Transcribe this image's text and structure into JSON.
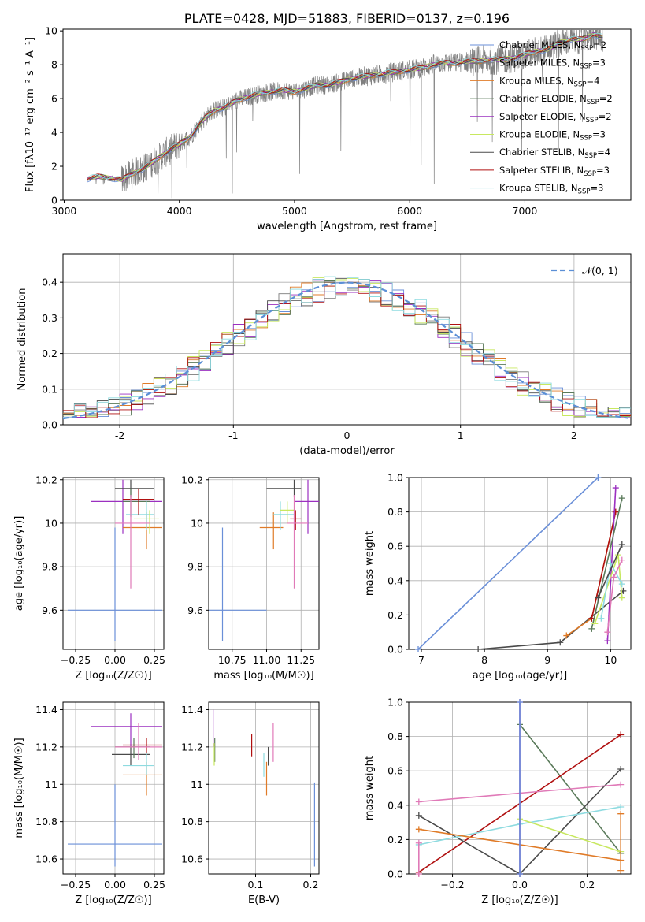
{
  "colors": {
    "cm": "#6a8fd8",
    "sm": "#7b7b7b",
    "km": "#e07b28",
    "ce": "#5a7a5a",
    "se": "#9b30c0",
    "ke": "#c8e860",
    "cs": "#4a4a4a",
    "ss": "#b01010",
    "ks": "#8edbe0",
    "pink": "#e07ab8",
    "normal": "#5b8fd6"
  },
  "chart_data": [
    {
      "type": "line",
      "title": "PLATE=0428, MJD=51883, FIBERID=0137, z=0.196",
      "xlabel": "wavelength [Angstrom, rest frame]",
      "ylabel": "Flux [fλ10⁻¹⁷ erg cm⁻² s⁻¹ A⁻¹]",
      "xlim": [
        2990,
        7920
      ],
      "ylim": [
        0,
        10.1
      ],
      "xticks": [
        3000,
        4000,
        5000,
        6000,
        7000
      ],
      "yticks": [
        0,
        2,
        4,
        6,
        8,
        10
      ],
      "grid": false,
      "legend_position": "right",
      "legend": [
        {
          "key": "cm",
          "label": "Chabrier MILES, N",
          "sub": "SSP",
          "eq": "=2"
        },
        {
          "key": "sm",
          "label": "Salpeter MILES, N",
          "sub": "SSP",
          "eq": "=3"
        },
        {
          "key": "km",
          "label": "Kroupa MILES, N",
          "sub": "SSP",
          "eq": "=4"
        },
        {
          "key": "ce",
          "label": "Chabrier ELODIE, N",
          "sub": "SSP",
          "eq": "=2"
        },
        {
          "key": "se",
          "label": "Salpeter ELODIE, N",
          "sub": "SSP",
          "eq": "=2"
        },
        {
          "key": "ke",
          "label": "Kroupa ELODIE, N",
          "sub": "SSP",
          "eq": "=3"
        },
        {
          "key": "cs",
          "label": "Chabrier STELIB, N",
          "sub": "SSP",
          "eq": "=4"
        },
        {
          "key": "ss",
          "label": "Salpeter STELIB, N",
          "sub": "SSP",
          "eq": "=3"
        },
        {
          "key": "ks",
          "label": "Kroupa STELIB, N",
          "sub": "SSP",
          "eq": "=3"
        }
      ],
      "continuum": [
        [
          3200,
          1.25
        ],
        [
          3300,
          1.4
        ],
        [
          3400,
          1.3
        ],
        [
          3500,
          1.2
        ],
        [
          3600,
          1.6
        ],
        [
          3700,
          1.9
        ],
        [
          3800,
          2.4
        ],
        [
          3900,
          2.9
        ],
        [
          4000,
          3.3
        ],
        [
          4100,
          3.8
        ],
        [
          4200,
          4.7
        ],
        [
          4300,
          5.3
        ],
        [
          4400,
          5.5
        ],
        [
          4500,
          5.9
        ],
        [
          4600,
          6.1
        ],
        [
          4700,
          6.3
        ],
        [
          4800,
          6.4
        ],
        [
          4900,
          6.5
        ],
        [
          5000,
          6.4
        ],
        [
          5100,
          6.6
        ],
        [
          5200,
          6.8
        ],
        [
          5300,
          6.8
        ],
        [
          5400,
          7.0
        ],
        [
          5500,
          7.2
        ],
        [
          5600,
          7.3
        ],
        [
          5700,
          7.4
        ],
        [
          5800,
          7.5
        ],
        [
          5900,
          7.6
        ],
        [
          6000,
          7.7
        ],
        [
          6100,
          7.8
        ],
        [
          6200,
          8.0
        ],
        [
          6300,
          8.1
        ],
        [
          6400,
          8.1
        ],
        [
          6500,
          8.2
        ],
        [
          6600,
          8.2
        ],
        [
          6700,
          8.3
        ],
        [
          6800,
          8.3
        ],
        [
          6900,
          8.4
        ],
        [
          7000,
          8.6
        ],
        [
          7100,
          8.8
        ],
        [
          7200,
          8.9
        ],
        [
          7300,
          9.3
        ],
        [
          7400,
          9.5
        ],
        [
          7500,
          9.5
        ],
        [
          7600,
          9.8
        ],
        [
          7680,
          9.6
        ]
      ]
    },
    {
      "type": "line",
      "xlabel": "(data-model)/error",
      "ylabel": "Normed distribution",
      "xlim": [
        -2.5,
        2.5
      ],
      "ylim": [
        0,
        0.48
      ],
      "xticks": [
        -2,
        -1,
        0,
        1,
        2
      ],
      "yticks": [
        0.0,
        0.1,
        0.2,
        0.3,
        0.4
      ],
      "grid": true,
      "legend_position": "top-right",
      "normal_label": "𝒩(0, 1)"
    },
    {
      "type": "scatter",
      "xlabel": "Z [log₁₀(Z/Z☉)]",
      "ylabel": "age  [log₁₀(age/yr)]",
      "xlim": [
        -0.33,
        0.31
      ],
      "ylim": [
        9.42,
        10.21
      ],
      "xticks": [
        -0.25,
        0.0,
        0.25
      ],
      "xtick_labels": [
        "−0.25",
        "0.00",
        "0.25"
      ],
      "yticks": [
        9.6,
        9.8,
        10.0,
        10.2
      ],
      "grid": true,
      "points": [
        {
          "c": "cm",
          "x": 0.0,
          "y": 9.6,
          "xe": [
            -0.3,
            0.3
          ],
          "ye": [
            9.46,
            9.98
          ]
        },
        {
          "c": "se",
          "x": 0.05,
          "y": 10.1,
          "xe": [
            -0.15,
            0.3
          ],
          "ye": [
            9.95,
            10.2
          ]
        },
        {
          "c": "cs",
          "x": 0.1,
          "y": 10.16,
          "xe": [
            0.0,
            0.25
          ],
          "ye": [
            10.12,
            10.2
          ]
        },
        {
          "c": "ce",
          "x": 0.1,
          "y": 10.1,
          "xe": [
            0.05,
            0.22
          ],
          "ye": [
            10.03,
            10.16
          ]
        },
        {
          "c": "km",
          "x": 0.2,
          "y": 9.98,
          "xe": [
            0.05,
            0.3
          ],
          "ye": [
            9.88,
            10.05
          ]
        },
        {
          "c": "ks",
          "x": 0.2,
          "y": 10.04,
          "xe": [
            0.07,
            0.25
          ],
          "ye": [
            9.97,
            10.1
          ]
        },
        {
          "c": "ke",
          "x": 0.22,
          "y": 10.02,
          "xe": [
            0.12,
            0.28
          ],
          "ye": [
            9.95,
            10.06
          ]
        },
        {
          "c": "ss",
          "x": 0.15,
          "y": 10.11,
          "xe": [
            0.05,
            0.25
          ],
          "ye": [
            10.04,
            10.16
          ]
        },
        {
          "c": "pink",
          "x": 0.1,
          "y": 10.0,
          "xe": [
            0.0,
            0.22
          ],
          "ye": [
            9.7,
            10.13
          ]
        }
      ]
    },
    {
      "type": "scatter",
      "xlabel": "mass [log₁₀(M/M☉)]",
      "xlim": [
        10.58,
        11.38
      ],
      "ylim": [
        9.42,
        10.21
      ],
      "xticks": [
        10.75,
        11.0,
        11.25
      ],
      "xtick_labels": [
        "10.75",
        "11.00",
        "11.25"
      ],
      "yticks": [
        9.6,
        9.8,
        10.0,
        10.2
      ],
      "grid": true,
      "points": [
        {
          "c": "cm",
          "x": 10.68,
          "y": 9.6,
          "xe": [
            10.58,
            11.0
          ],
          "ye": [
            9.46,
            9.98
          ]
        },
        {
          "c": "se",
          "x": 11.3,
          "y": 10.1,
          "xe": [
            11.2,
            11.38
          ],
          "ye": [
            9.95,
            10.2
          ]
        },
        {
          "c": "cs",
          "x": 11.2,
          "y": 10.16,
          "xe": [
            11.0,
            11.25
          ],
          "ye": [
            10.12,
            10.2
          ]
        },
        {
          "c": "km",
          "x": 11.05,
          "y": 9.98,
          "xe": [
            10.95,
            11.12
          ],
          "ye": [
            9.88,
            10.05
          ]
        },
        {
          "c": "ks",
          "x": 11.1,
          "y": 10.04,
          "xe": [
            11.05,
            11.2
          ],
          "ye": [
            9.97,
            10.1
          ]
        },
        {
          "c": "ke",
          "x": 11.15,
          "y": 10.06,
          "xe": [
            11.1,
            11.2
          ],
          "ye": [
            10.0,
            10.1
          ]
        },
        {
          "c": "ss",
          "x": 11.21,
          "y": 10.02,
          "xe": [
            11.17,
            11.25
          ],
          "ye": [
            9.97,
            10.06
          ]
        },
        {
          "c": "pink",
          "x": 11.2,
          "y": 10.0,
          "xe": [
            11.15,
            11.3
          ],
          "ye": [
            9.7,
            10.13
          ]
        }
      ]
    },
    {
      "type": "line",
      "xlabel": "age  [log₁₀(age/yr)]",
      "ylabel": "mass weight",
      "xlim": [
        6.8,
        10.32
      ],
      "ylim": [
        0,
        1.0
      ],
      "xticks": [
        7,
        8,
        9,
        10
      ],
      "yticks": [
        0.0,
        0.2,
        0.4,
        0.6,
        0.8,
        1.0
      ],
      "grid": true,
      "series": [
        {
          "c": "cm",
          "x": [
            6.95,
            9.8
          ],
          "y": [
            0.0,
            1.0
          ]
        },
        {
          "c": "cs",
          "x": [
            7.9,
            9.2,
            10.2
          ],
          "y": [
            0.0,
            0.04,
            0.34
          ]
        },
        {
          "c": "km",
          "x": [
            9.3,
            9.7,
            10.08
          ],
          "y": [
            0.08,
            0.18,
            0.8
          ]
        },
        {
          "c": "ss",
          "x": [
            9.7,
            10.08
          ],
          "y": [
            0.18,
            0.8
          ]
        },
        {
          "c": "se",
          "x": [
            9.95,
            10.08
          ],
          "y": [
            0.05,
            0.94
          ]
        },
        {
          "c": "ce",
          "x": [
            9.7,
            10.18
          ],
          "y": [
            0.12,
            0.88
          ]
        },
        {
          "c": "ke",
          "x": [
            9.75,
            10.12,
            10.18
          ],
          "y": [
            0.15,
            0.55,
            0.3
          ]
        },
        {
          "c": "ks",
          "x": [
            9.85,
            10.0,
            10.18
          ],
          "y": [
            0.18,
            0.5,
            0.38
          ]
        },
        {
          "c": "pink",
          "x": [
            9.95,
            10.05,
            10.18
          ],
          "y": [
            0.1,
            0.42,
            0.52
          ]
        },
        {
          "c": "cs",
          "x": [
            9.8,
            10.18
          ],
          "y": [
            0.3,
            0.61
          ]
        }
      ]
    },
    {
      "type": "scatter",
      "xlabel": "Z [log₁₀(Z/Z☉)]",
      "ylabel": "mass [log₁₀(M/M☉)]",
      "xlim": [
        -0.33,
        0.31
      ],
      "ylim": [
        10.52,
        11.44
      ],
      "xticks": [
        -0.25,
        0.0,
        0.25
      ],
      "xtick_labels": [
        "−0.25",
        "0.00",
        "0.25"
      ],
      "yticks": [
        10.6,
        10.8,
        11.0,
        11.2,
        11.4
      ],
      "grid": true,
      "points": [
        {
          "c": "cm",
          "x": 0.0,
          "y": 10.68,
          "xe": [
            -0.3,
            0.3
          ],
          "ye": [
            10.56,
            11.0
          ]
        },
        {
          "c": "se",
          "x": 0.1,
          "y": 11.31,
          "xe": [
            -0.15,
            0.3
          ],
          "ye": [
            11.2,
            11.38
          ]
        },
        {
          "c": "cs",
          "x": 0.1,
          "y": 11.16,
          "xe": [
            -0.02,
            0.22
          ],
          "ye": [
            11.1,
            11.2
          ]
        },
        {
          "c": "ce",
          "x": 0.12,
          "y": 11.2,
          "xe": [
            0.0,
            0.22
          ],
          "ye": [
            11.14,
            11.25
          ]
        },
        {
          "c": "km",
          "x": 0.2,
          "y": 11.05,
          "xe": [
            0.05,
            0.3
          ],
          "ye": [
            10.94,
            11.12
          ]
        },
        {
          "c": "ks",
          "x": 0.2,
          "y": 11.1,
          "xe": [
            0.05,
            0.25
          ],
          "ye": [
            11.05,
            11.17
          ]
        },
        {
          "c": "ss",
          "x": 0.2,
          "y": 11.21,
          "xe": [
            0.05,
            0.3
          ],
          "ye": [
            11.17,
            11.25
          ]
        },
        {
          "c": "pink",
          "x": 0.15,
          "y": 11.2,
          "xe": [
            0.0,
            0.3
          ],
          "ye": [
            11.13,
            11.33
          ]
        }
      ]
    },
    {
      "type": "scatter",
      "xlabel": "E(B-V)",
      "xlim": [
        0.015,
        0.215
      ],
      "ylim": [
        10.52,
        11.44
      ],
      "xticks": [
        0.1,
        0.2
      ],
      "xtick_labels": [
        "0.1",
        "0.2"
      ],
      "yticks": [
        10.6,
        10.8,
        11.0,
        11.2,
        11.4
      ],
      "grid": true,
      "points": [
        {
          "c": "cm",
          "x": 0.207,
          "y": 10.68,
          "ye": [
            10.56,
            11.01
          ]
        },
        {
          "c": "se",
          "x": 0.023,
          "y": 11.31,
          "ye": [
            11.2,
            11.4
          ]
        },
        {
          "c": "ce",
          "x": 0.026,
          "y": 11.2,
          "ye": [
            11.12,
            11.25
          ]
        },
        {
          "c": "ke",
          "x": 0.025,
          "y": 11.17,
          "ye": [
            11.1,
            11.22
          ]
        },
        {
          "c": "km",
          "x": 0.12,
          "y": 11.05,
          "ye": [
            10.94,
            11.12
          ]
        },
        {
          "c": "ks",
          "x": 0.115,
          "y": 11.1,
          "ye": [
            11.04,
            11.17
          ]
        },
        {
          "c": "ss",
          "x": 0.093,
          "y": 11.21,
          "ye": [
            11.15,
            11.27
          ]
        },
        {
          "c": "cs",
          "x": 0.123,
          "y": 11.16,
          "ye": [
            11.1,
            11.2
          ]
        },
        {
          "c": "pink",
          "x": 0.132,
          "y": 11.2,
          "ye": [
            11.12,
            11.33
          ]
        }
      ]
    },
    {
      "type": "line",
      "xlabel": "Z [log₁₀(Z/Z☉)]",
      "ylabel": "mass weight",
      "xlim": [
        -0.33,
        0.33
      ],
      "ylim": [
        0,
        1.0
      ],
      "xticks": [
        -0.2,
        0.0,
        0.2
      ],
      "xtick_labels": [
        "−0.2",
        "0.0",
        "0.2"
      ],
      "yticks": [
        0.0,
        0.2,
        0.4,
        0.6,
        0.8,
        1.0
      ],
      "grid": true,
      "series": [
        {
          "c": "ce",
          "x": [
            0.0,
            0.3
          ],
          "y": [
            0.87,
            0.12
          ]
        },
        {
          "c": "ss",
          "x": [
            -0.3,
            0.3
          ],
          "y": [
            0.01,
            0.81
          ]
        },
        {
          "c": "cs",
          "x": [
            -0.3,
            0.0,
            0.3
          ],
          "y": [
            0.34,
            0.0,
            0.61
          ]
        },
        {
          "c": "pink",
          "x": [
            -0.3,
            0.3
          ],
          "y": [
            0.42,
            0.52
          ]
        },
        {
          "c": "ks",
          "x": [
            -0.3,
            0.0,
            0.3
          ],
          "y": [
            0.17,
            0.29,
            0.39
          ]
        },
        {
          "c": "km",
          "x": [
            -0.3,
            0.3
          ],
          "y": [
            0.26,
            0.08
          ]
        },
        {
          "c": "ke",
          "x": [
            0.0,
            0.3
          ],
          "y": [
            0.32,
            0.13
          ]
        },
        {
          "c": "se",
          "x": [
            0.0,
            0.0
          ],
          "y": [
            0.0,
            1.0
          ]
        },
        {
          "c": "cm",
          "x": [
            0.0,
            0.0
          ],
          "y": [
            0.0,
            1.0
          ]
        },
        {
          "c": "km",
          "x": [
            0.3,
            0.3
          ],
          "y": [
            0.02,
            0.35
          ]
        },
        {
          "c": "pink",
          "x": [
            -0.3,
            -0.3
          ],
          "y": [
            0.0,
            0.18
          ]
        }
      ]
    }
  ]
}
